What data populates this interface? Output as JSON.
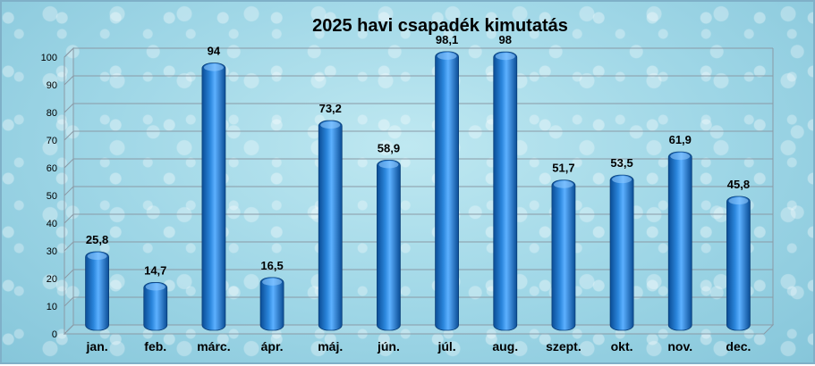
{
  "chart_data": {
    "type": "bar",
    "title": "2025 havi  csapadék kimutatás",
    "xlabel": "",
    "ylabel": "",
    "categories": [
      "jan.",
      "feb.",
      "márc.",
      "ápr.",
      "máj.",
      "jún.",
      "júl.",
      "aug.",
      "szept.",
      "okt.",
      "nov.",
      "dec."
    ],
    "values": [
      25.8,
      14.7,
      94,
      16.5,
      73.2,
      58.9,
      98.1,
      98,
      51.7,
      53.5,
      61.9,
      45.8
    ],
    "value_labels": [
      "25,8",
      "14,7",
      "94",
      "16,5",
      "73,2",
      "58,9",
      "98,1",
      "98",
      "51,7",
      "53,5",
      "61,9",
      "45,8"
    ],
    "ylim": [
      0,
      100
    ],
    "yticks": [
      0,
      10,
      20,
      30,
      40,
      50,
      60,
      70,
      80,
      90,
      100
    ],
    "grid": true,
    "legend": "none",
    "colors": {
      "bar_dark": "#0b4f9a",
      "bar_mid": "#1f78d1",
      "bar_light": "#5fb1ff",
      "grid": "#8a9aa6"
    }
  }
}
